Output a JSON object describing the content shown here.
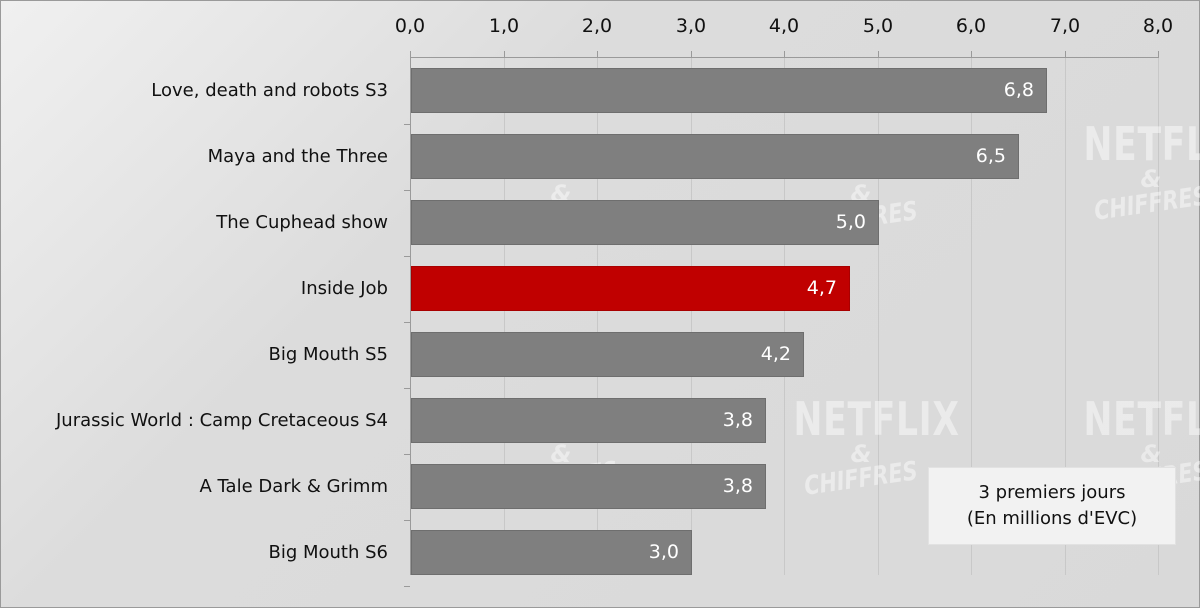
{
  "chart_data": {
    "type": "bar",
    "orientation": "horizontal",
    "title": "",
    "xlabel": "",
    "ylabel": "",
    "categories": [
      "Love, death and robots S3",
      "Maya and the Three",
      "The Cuphead show",
      "Inside Job",
      "Big Mouth S5",
      "Jurassic World : Camp Cretaceous S4",
      "A Tale Dark & Grimm",
      "Big Mouth S6"
    ],
    "values": [
      6.8,
      6.5,
      5.0,
      4.7,
      4.2,
      3.8,
      3.8,
      3.0
    ],
    "value_labels": [
      "6,8",
      "6,5",
      "5,0",
      "4,7",
      "4,2",
      "3,8",
      "3,8",
      "3,0"
    ],
    "highlight_index": 3,
    "xlim": [
      0,
      8
    ],
    "xticks": [
      "0,0",
      "1,0",
      "2,0",
      "3,0",
      "4,0",
      "5,0",
      "6,0",
      "7,0",
      "8,0"
    ],
    "x_axis_position": "top",
    "grid": true,
    "colors": {
      "default": "#7f7f7f",
      "highlight": "#c00000",
      "background": "#d9d9d9"
    },
    "legend": {
      "line1": "3 premiers jours",
      "line2": "(En millions d'EVC)",
      "position": "bottom-right"
    },
    "watermark": {
      "line1": "NETFLIX",
      "line2": "&",
      "line3": "CHIFFRES"
    }
  }
}
